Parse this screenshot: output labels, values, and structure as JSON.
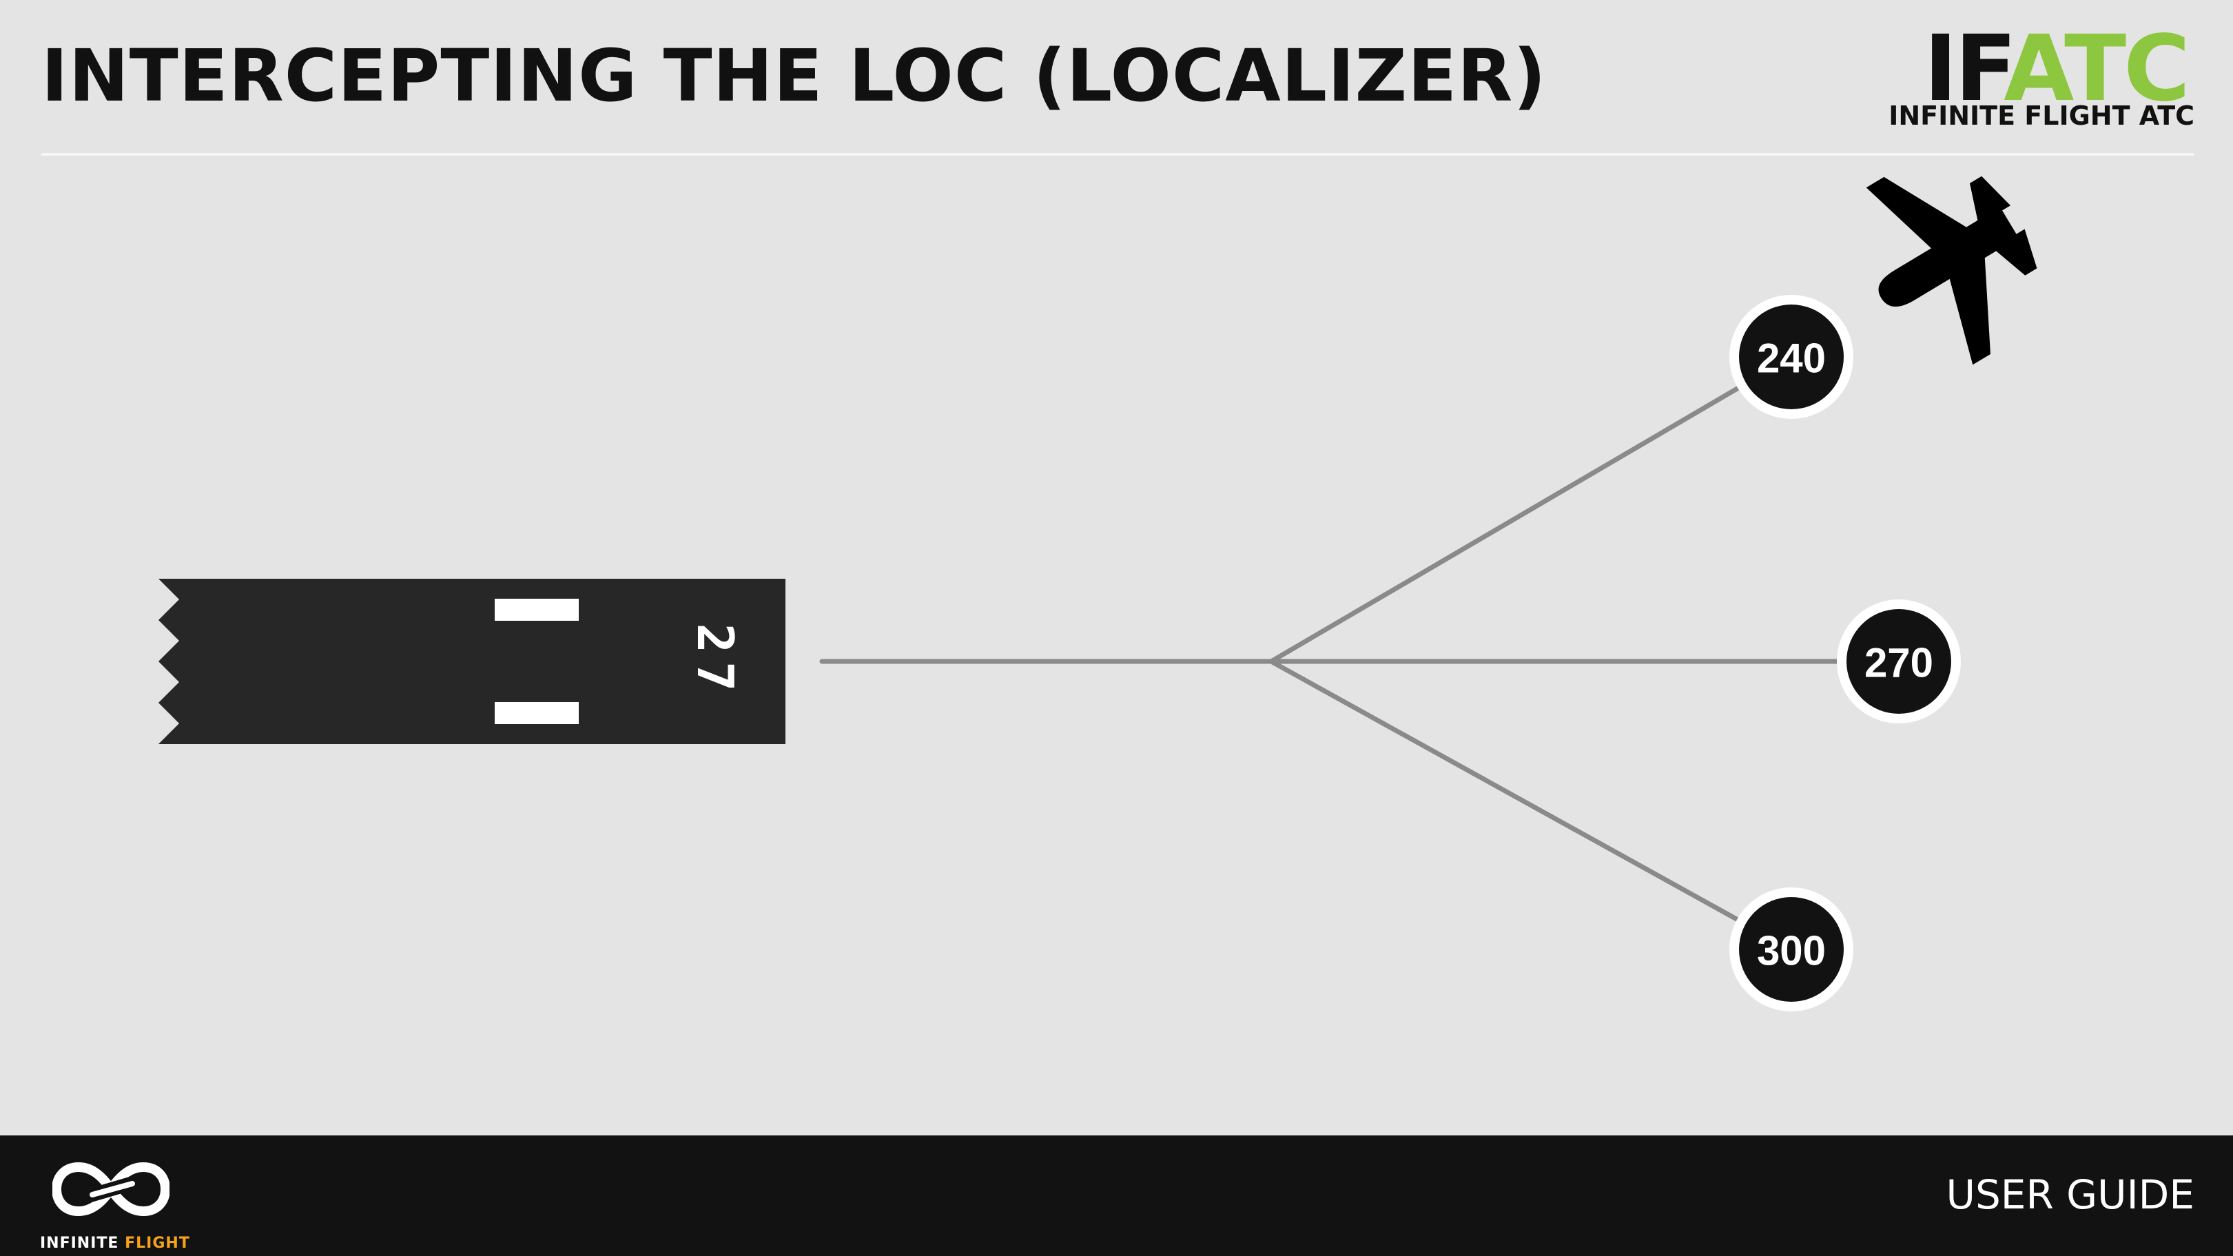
{
  "header": {
    "title": "INTERCEPTING THE LOC (LOCALIZER)"
  },
  "brand": {
    "wordmark_if": "IF",
    "wordmark_at": "AT",
    "wordmark_c": "C",
    "subtitle": "INFINITE FLIGHT ATC",
    "colors": {
      "dark": "#111111",
      "green": "#8dc63f"
    }
  },
  "diagram": {
    "runway": {
      "designator": "27",
      "color": "#272727"
    },
    "intercept_headings": [
      {
        "label": "240"
      },
      {
        "label": "270"
      },
      {
        "label": "300"
      }
    ],
    "aircraft_icon": "airplane-icon",
    "line_color": "#8a8a8a"
  },
  "footer": {
    "logo_word_1": "INFINITE",
    "logo_word_2": "FLIGHT",
    "label": "USER GUIDE",
    "colors": {
      "background": "#121212",
      "accent": "#f5a31a"
    }
  }
}
